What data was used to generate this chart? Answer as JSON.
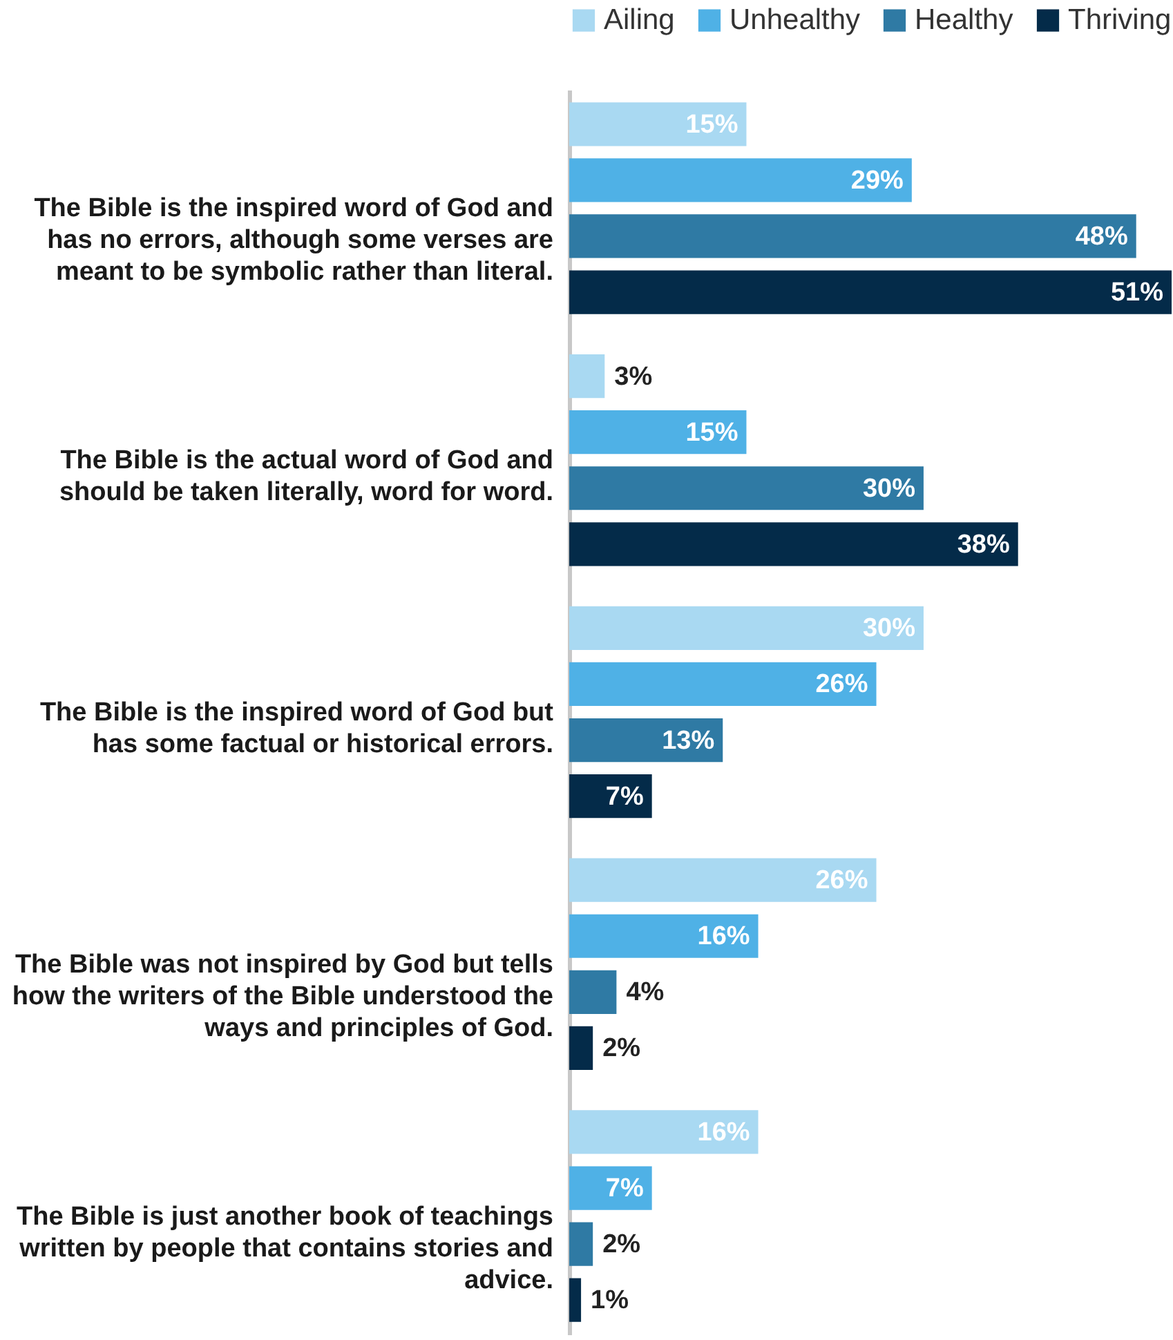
{
  "chart_data": {
    "type": "bar",
    "orientation": "horizontal",
    "legend": "top",
    "categories": [
      "The Bible is the inspired word of God and has no errors, although some verses are meant to be symbolic rather than literal.",
      "The Bible is the actual word of God and should be taken literally, word for word.",
      "The Bible is the inspired word of God but has some factual or historical errors.",
      "The Bible was not inspired by God but tells how the writers of the Bible understood the ways and principles of God.",
      "The Bible is just another book of teachings written by people that contains stories and advice."
    ],
    "series": [
      {
        "name": "Ailing",
        "color": "#a9d9f2",
        "values": [
          15,
          3,
          30,
          26,
          16
        ],
        "value_labels": [
          "15%",
          "3%",
          "30%",
          "26%",
          "16%"
        ]
      },
      {
        "name": "Unhealthy",
        "color": "#4fb1e6",
        "values": [
          29,
          15,
          26,
          16,
          7
        ],
        "value_labels": [
          "29%",
          "15%",
          "26%",
          "16%",
          "7%"
        ]
      },
      {
        "name": "Healthy",
        "color": "#2f7aa4",
        "values": [
          48,
          30,
          13,
          4,
          2
        ],
        "value_labels": [
          "48%",
          "30%",
          "13%",
          "4%",
          "2%"
        ]
      },
      {
        "name": "Thriving",
        "color": "#042b49",
        "values": [
          51,
          38,
          7,
          2,
          1
        ],
        "value_labels": [
          "51%",
          "38%",
          "7%",
          "2%",
          "1%"
        ]
      }
    ]
  }
}
